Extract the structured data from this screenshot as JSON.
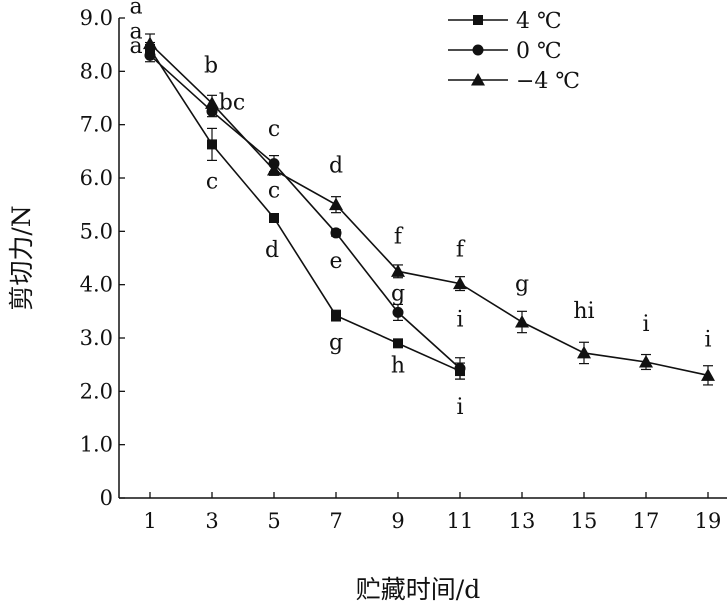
{
  "chart_data": {
    "type": "line",
    "title": "",
    "xlabel": "贮藏时间/d",
    "ylabel": "剪切力/N",
    "x_ticks": [
      1,
      3,
      5,
      7,
      9,
      11,
      13,
      15,
      17,
      19
    ],
    "y_ticks": [
      "0",
      "1.0",
      "2.0",
      "3.0",
      "4.0",
      "5.0",
      "6.0",
      "7.0",
      "8.0",
      "9.0"
    ],
    "xlim": [
      0,
      20
    ],
    "ylim": [
      0,
      9
    ],
    "grid": false,
    "legend_position": "top-right",
    "series": [
      {
        "name": "4 ℃",
        "marker": "square",
        "points": [
          {
            "x": 1,
            "y": 8.42,
            "err": 0.12,
            "sig": "a"
          },
          {
            "x": 3,
            "y": 6.63,
            "err": 0.3,
            "sig": "c"
          },
          {
            "x": 5,
            "y": 5.25,
            "err": 0.08,
            "sig": "d"
          },
          {
            "x": 7,
            "y": 3.42,
            "err": 0.1,
            "sig": "g"
          },
          {
            "x": 9,
            "y": 2.9,
            "err": 0.06,
            "sig": "h"
          },
          {
            "x": 11,
            "y": 2.38,
            "err": 0.15,
            "sig": "i"
          }
        ]
      },
      {
        "name": "0 ℃",
        "marker": "circle",
        "points": [
          {
            "x": 1,
            "y": 8.3,
            "err": 0.12,
            "sig": "a"
          },
          {
            "x": 3,
            "y": 7.25,
            "err": 0.1,
            "sig": "bc"
          },
          {
            "x": 5,
            "y": 6.27,
            "err": 0.15,
            "sig": "c"
          },
          {
            "x": 7,
            "y": 4.97,
            "err": 0.06,
            "sig": "e"
          },
          {
            "x": 9,
            "y": 3.48,
            "err": 0.15,
            "sig": "g"
          },
          {
            "x": 11,
            "y": 2.43,
            "err": 0.2,
            "sig": "i"
          }
        ]
      },
      {
        "name": "−4 ℃",
        "marker": "triangle",
        "points": [
          {
            "x": 1,
            "y": 8.52,
            "err": 0.18,
            "sig": "a"
          },
          {
            "x": 3,
            "y": 7.4,
            "err": 0.15,
            "sig": "b"
          },
          {
            "x": 5,
            "y": 6.15,
            "err": 0.1,
            "sig": "c"
          },
          {
            "x": 7,
            "y": 5.5,
            "err": 0.15,
            "sig": "d"
          },
          {
            "x": 9,
            "y": 4.25,
            "err": 0.12,
            "sig": "f"
          },
          {
            "x": 11,
            "y": 4.02,
            "err": 0.13,
            "sig": "f"
          },
          {
            "x": 13,
            "y": 3.3,
            "err": 0.2,
            "sig": "g"
          },
          {
            "x": 15,
            "y": 2.72,
            "err": 0.2,
            "sig": "hi"
          },
          {
            "x": 17,
            "y": 2.55,
            "err": 0.14,
            "sig": "i"
          },
          {
            "x": 19,
            "y": 2.3,
            "err": 0.18,
            "sig": "i"
          }
        ]
      }
    ]
  }
}
